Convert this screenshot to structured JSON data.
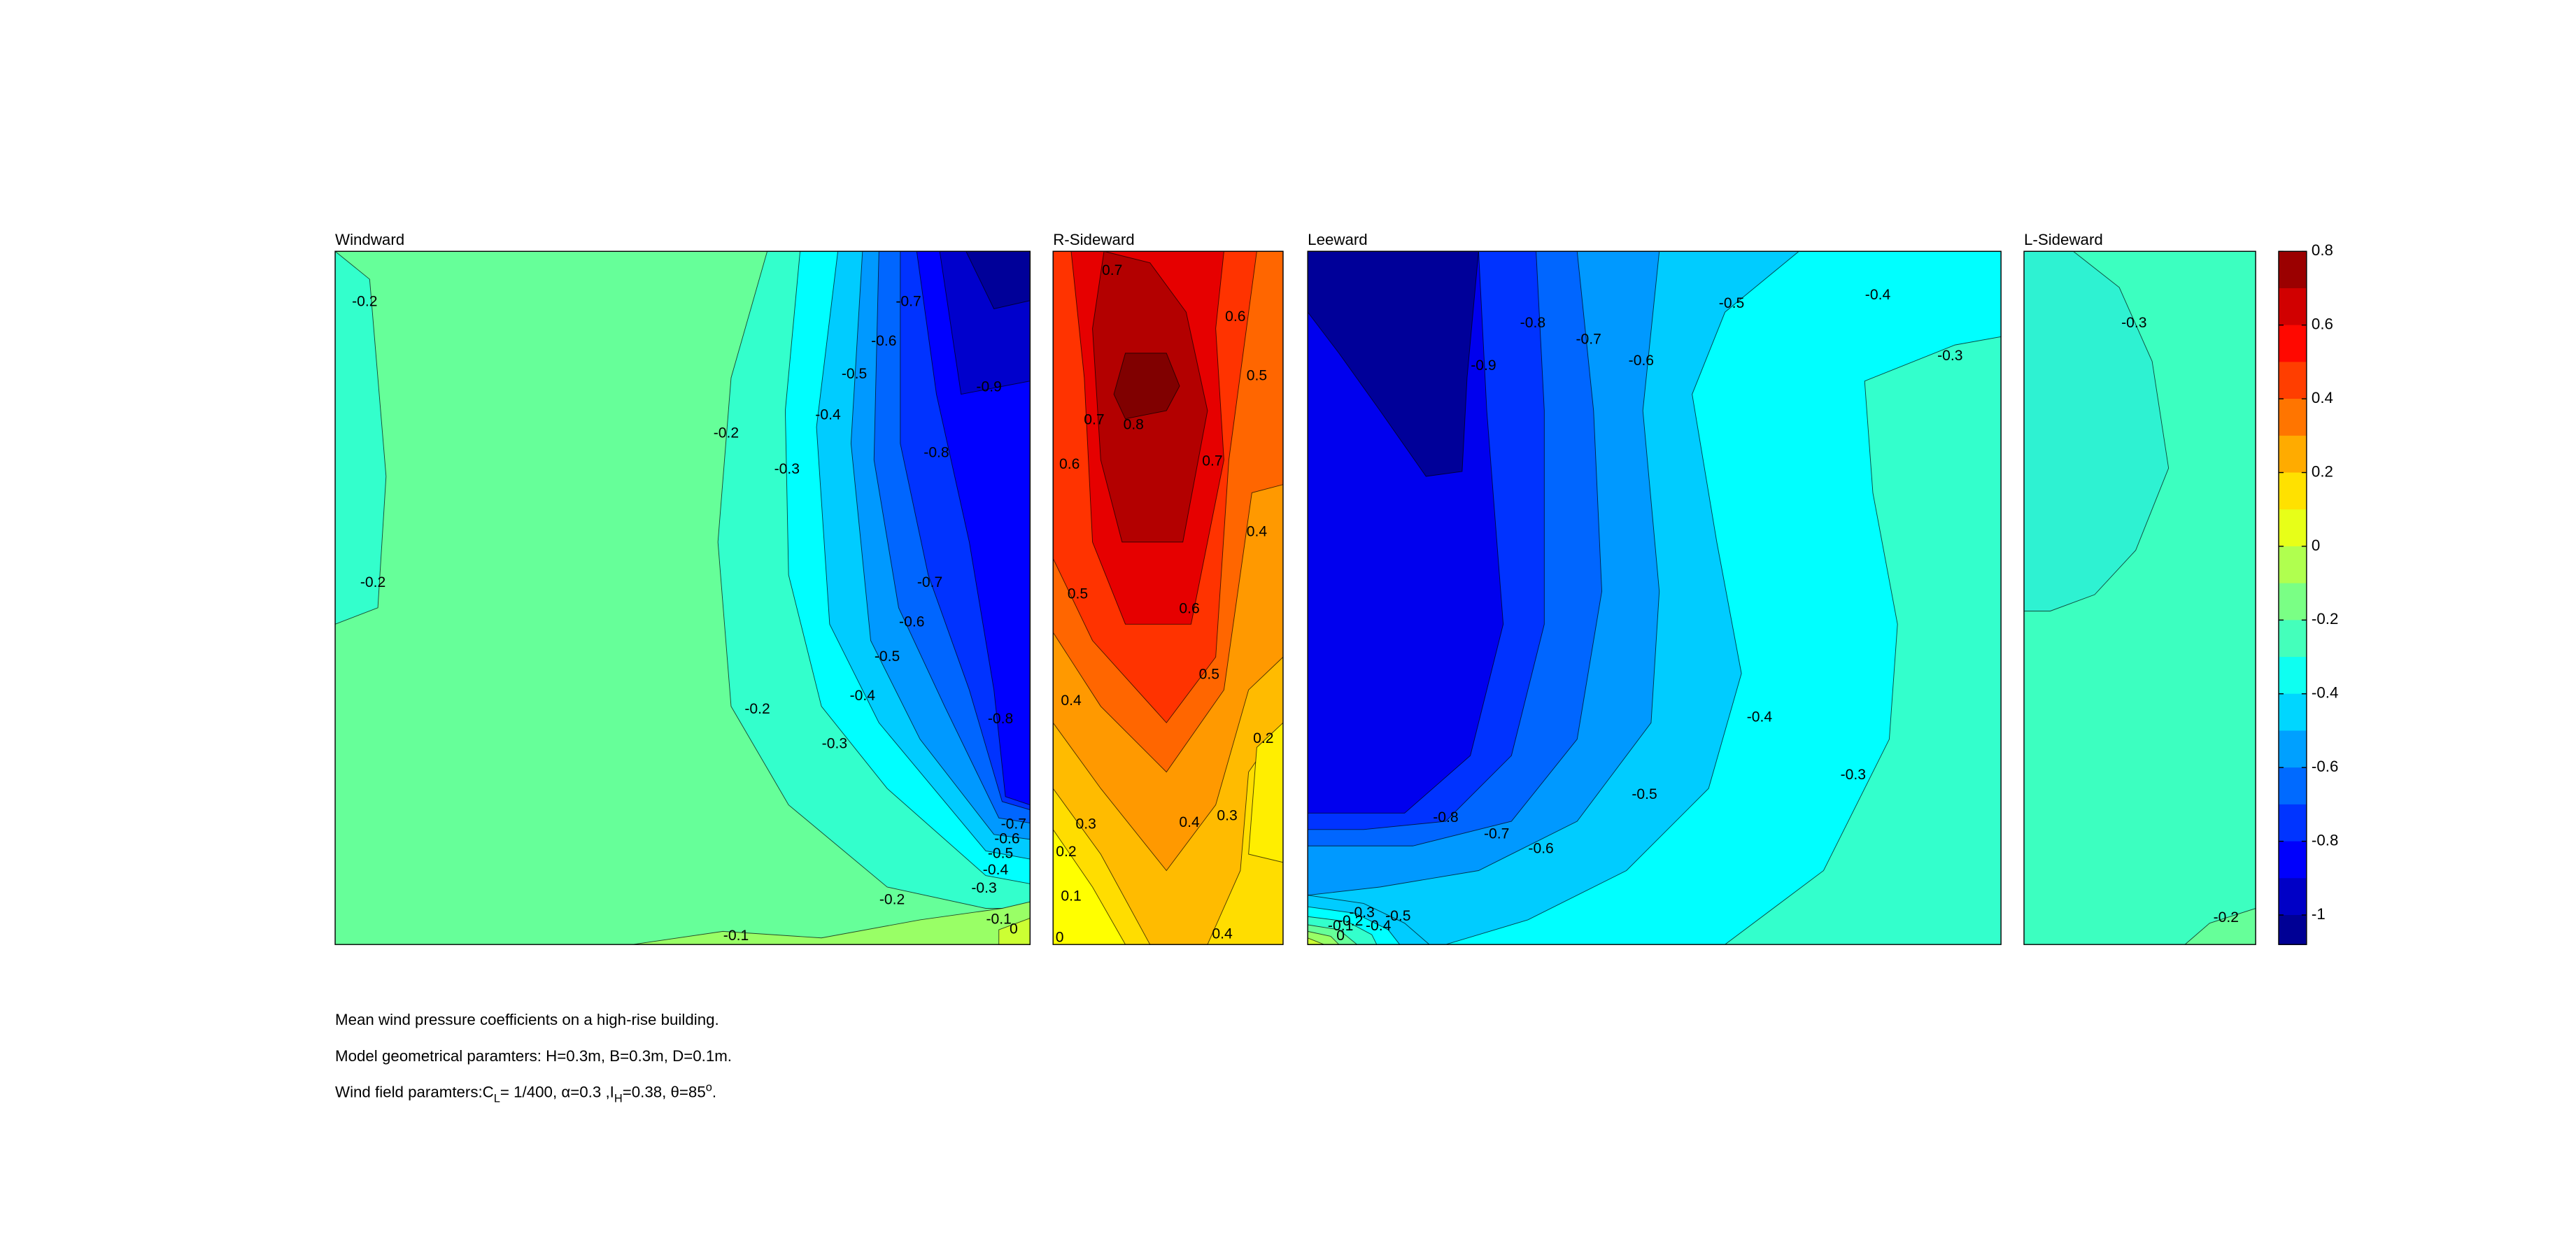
{
  "chart_data": [
    {
      "type": "contour",
      "title": "Windward",
      "contour_labels": [
        -0.2,
        -0.2,
        -0.3,
        -0.4,
        -0.5,
        -0.6,
        -0.7,
        -0.8,
        -0.9,
        -0.2,
        -0.7,
        -0.6,
        -0.5,
        -0.4,
        -0.3,
        -0.2,
        -0.8,
        -0.7,
        -0.6,
        -0.5,
        -0.4,
        -0.3,
        -0.2,
        -0.1,
        -0.1,
        0
      ]
    },
    {
      "type": "contour",
      "title": "R-Sideward",
      "contour_labels": [
        0.7,
        0.6,
        0.5,
        0.8,
        0.7,
        0.6,
        0.7,
        0.4,
        0.5,
        0.6,
        0.5,
        0.4,
        0.2,
        0.3,
        0.4,
        0.3,
        0.2,
        0.1,
        0,
        0.4
      ]
    },
    {
      "type": "contour",
      "title": "Leeward",
      "contour_labels": [
        -0.9,
        -0.8,
        -0.7,
        -0.6,
        -0.5,
        -0.4,
        -0.3,
        -0.4,
        -0.3,
        -0.5,
        -0.6,
        -0.7,
        -0.8,
        -0.5,
        -0.4,
        -0.3,
        -0.2,
        -0.1,
        0
      ]
    },
    {
      "type": "contour",
      "title": "L-Sideward",
      "contour_labels": [
        -0.3,
        -0.2
      ]
    },
    {
      "type": "colorbar",
      "colormap": "jet",
      "ylim": [
        -1.08,
        0.8
      ],
      "yticks": [
        -1,
        -0.8,
        -0.6,
        -0.4,
        -0.2,
        0,
        0.2,
        0.4,
        0.6,
        0.8
      ]
    }
  ],
  "caption": {
    "line1": "Mean wind pressure coefficients on a high-rise building.",
    "line2": "Model geometrical paramters: H=0.3m, B=0.3m, D=0.1m.",
    "line3": [
      "Wind field paramters:C",
      "L",
      "= 1/400, α=0.3 ,I",
      "H",
      "=0.38, θ=85",
      "o",
      "."
    ]
  }
}
